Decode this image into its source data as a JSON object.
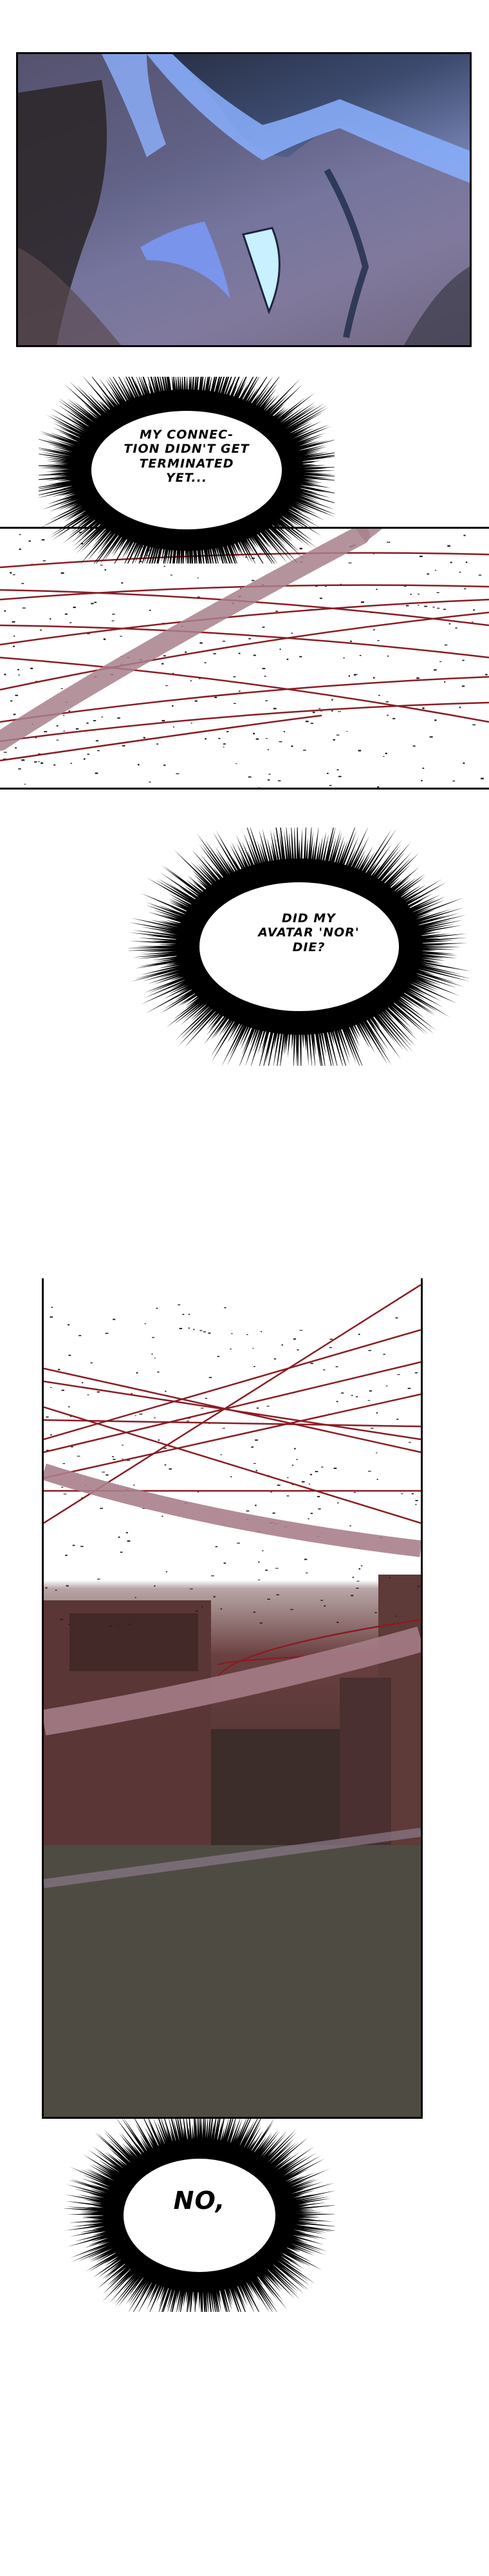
{
  "bubbles": [
    {
      "text": "MY CONNEC-\nTION DIDN'T GET\nTERMINATED\nYET..."
    },
    {
      "text": "DID MY\nAVATAR 'NOR'\nDIE?"
    },
    {
      "text": "NO,"
    }
  ],
  "colors": {
    "panel1_glow": "#7fa6ff",
    "wire": "#8a1c24",
    "band": "#a8808c",
    "ink": "#000000"
  }
}
